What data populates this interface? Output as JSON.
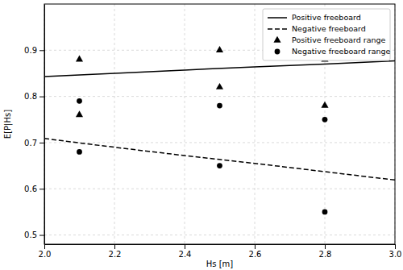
{
  "chart_data": {
    "type": "line",
    "x_label": "Hs [m]",
    "y_label": "E[P|Hs]",
    "xlim": [
      2.0,
      3.0
    ],
    "ylim": [
      0.48,
      1.0
    ],
    "xticks": [
      {
        "value": 2.0,
        "label": "2.0"
      },
      2.2,
      2.4,
      2.6,
      2.8,
      {
        "value": 3.0,
        "label": "3.0"
      }
    ],
    "yticks": [
      0.5,
      0.6,
      0.7,
      0.8,
      0.9
    ],
    "grid": true,
    "legend": "upper right",
    "series": [
      {
        "name": "Positive freeboard",
        "type": "line",
        "color": "#000000",
        "line_style": "solid",
        "x": [
          2.0,
          2.2,
          2.4,
          2.6,
          2.8,
          3.0
        ],
        "values": [
          0.843,
          0.85,
          0.857,
          0.864,
          0.87,
          0.877
        ]
      },
      {
        "name": "Negative freeboard",
        "type": "line",
        "color": "#000000",
        "line_style": "dashed",
        "x": [
          2.0,
          2.2,
          2.4,
          2.6,
          2.8,
          3.0
        ],
        "values": [
          0.709,
          0.69,
          0.672,
          0.655,
          0.637,
          0.619
        ]
      },
      {
        "name": "Positive freeboard range",
        "type": "scatter",
        "color": "#000000",
        "marker": "triangle",
        "x": [
          2.1,
          2.1,
          2.5,
          2.5,
          2.8,
          2.8
        ],
        "values": [
          0.88,
          0.76,
          0.9,
          0.82,
          0.88,
          0.78
        ]
      },
      {
        "name": "Negative freeboard range",
        "type": "scatter",
        "color": "#000000",
        "marker": "circle",
        "x": [
          2.1,
          2.1,
          2.5,
          2.5,
          2.8,
          2.8
        ],
        "values": [
          0.79,
          0.68,
          0.78,
          0.65,
          0.75,
          0.55
        ]
      }
    ]
  }
}
